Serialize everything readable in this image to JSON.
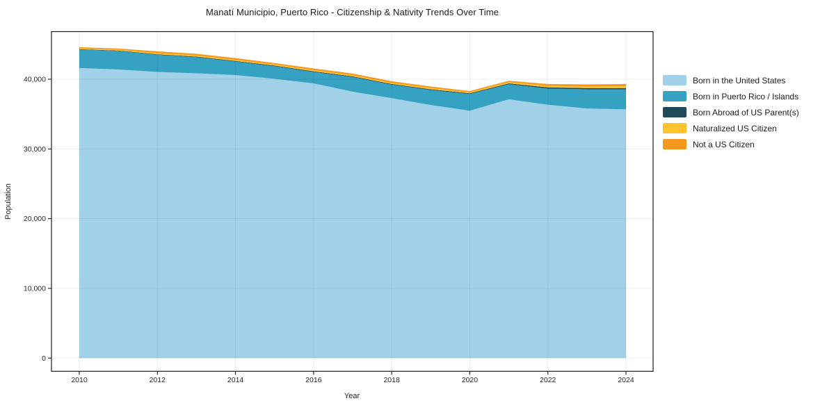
{
  "chart_data": {
    "type": "area",
    "stacked": true,
    "title": "Manatí Municipio, Puerto Rico - Citizenship & Nativity Trends Over Time",
    "xlabel": "Year",
    "ylabel": "Population",
    "grid": true,
    "legend_position": "right",
    "xlim": [
      2009.3,
      2024.7
    ],
    "ylim": [
      -1870,
      46780
    ],
    "x": [
      2010,
      2011,
      2012,
      2013,
      2014,
      2015,
      2016,
      2017,
      2018,
      2019,
      2020,
      2021,
      2022,
      2023,
      2024
    ],
    "series": [
      {
        "name": "Born in the United States",
        "color": "#a1d1e8",
        "values": [
          41600,
          41400,
          41050,
          40850,
          40600,
          40050,
          39400,
          38220,
          37290,
          36300,
          35470,
          37120,
          36330,
          35800,
          35670
        ]
      },
      {
        "name": "Born in Puerto Rico / Islands",
        "color": "#35a2c2",
        "values": [
          2650,
          2650,
          2450,
          2300,
          1930,
          1800,
          1640,
          2090,
          1920,
          2150,
          2410,
          2160,
          2320,
          2750,
          2880
        ]
      },
      {
        "name": "Born Abroad of US Parent(s)",
        "color": "#1f4a5a",
        "values": [
          60,
          60,
          80,
          90,
          90,
          100,
          100,
          100,
          100,
          100,
          100,
          120,
          180,
          180,
          180
        ]
      },
      {
        "name": "Naturalized US Citizen",
        "color": "#fcc32c",
        "values": [
          120,
          130,
          160,
          160,
          160,
          150,
          170,
          170,
          170,
          170,
          150,
          180,
          200,
          220,
          250
        ]
      },
      {
        "name": "Not a US Citizen",
        "color": "#f5981f",
        "values": [
          170,
          160,
          260,
          250,
          250,
          220,
          230,
          230,
          230,
          230,
          180,
          200,
          280,
          300,
          330
        ]
      }
    ],
    "xticks": {
      "values": [
        2010,
        2012,
        2014,
        2016,
        2018,
        2020,
        2022,
        2024
      ],
      "labels": [
        "2010",
        "2012",
        "2014",
        "2016",
        "2018",
        "2020",
        "2022",
        "2024"
      ]
    },
    "yticks": {
      "values": [
        0,
        10000,
        20000,
        30000,
        40000
      ],
      "labels": [
        "0",
        "10,000",
        "20,000",
        "30,000",
        "40,000"
      ]
    }
  }
}
